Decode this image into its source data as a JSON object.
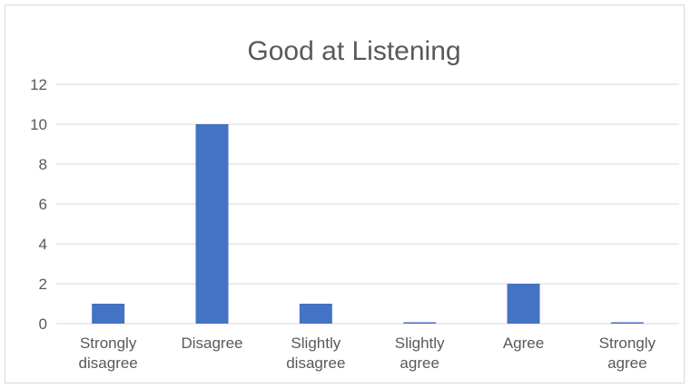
{
  "chart_data": {
    "type": "bar",
    "title": "Good at Listening",
    "categories": [
      [
        "Strongly",
        "disagree"
      ],
      [
        "Disagree"
      ],
      [
        "Slightly",
        "disagree"
      ],
      [
        "Slightly",
        "agree"
      ],
      [
        "Agree"
      ],
      [
        "Strongly",
        "agree"
      ]
    ],
    "values": [
      1,
      10,
      1,
      0,
      2,
      0
    ],
    "ylim": [
      0,
      12
    ],
    "yticks": [
      0,
      2,
      4,
      6,
      8,
      10,
      12
    ],
    "grid": true,
    "legend": "none",
    "colors": {
      "bar": "#4472c4",
      "grid": "#d9d9d9",
      "text": "#595959"
    }
  }
}
